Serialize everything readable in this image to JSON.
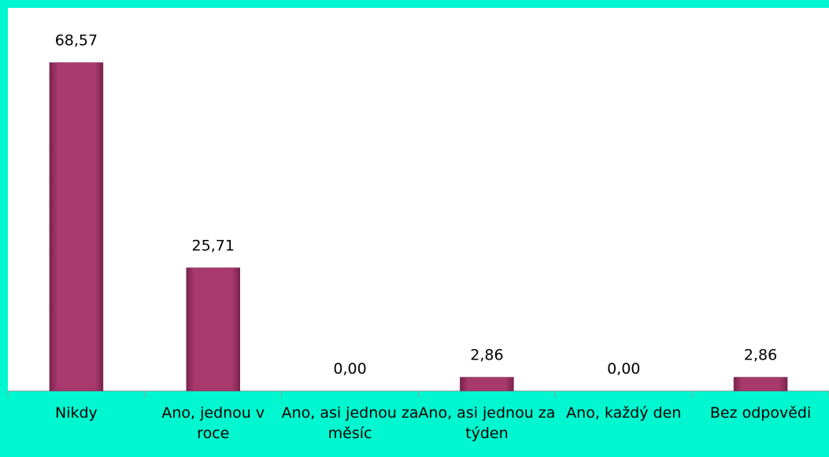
{
  "chart_data": {
    "type": "bar",
    "categories": [
      "Nikdy",
      "Ano, jednou v roce",
      "Ano, asi jednou za měsíc",
      "Ano, asi jednou za týden",
      "Ano, každý den",
      "Bez odpovědi"
    ],
    "values": [
      68.57,
      25.71,
      0,
      2.86,
      0,
      2.86
    ],
    "value_labels": [
      "68,57",
      "25,71",
      "0,00",
      "2,86",
      "0,00",
      "2,86"
    ],
    "color": "#9e3466",
    "ylim": [
      0,
      80
    ]
  }
}
